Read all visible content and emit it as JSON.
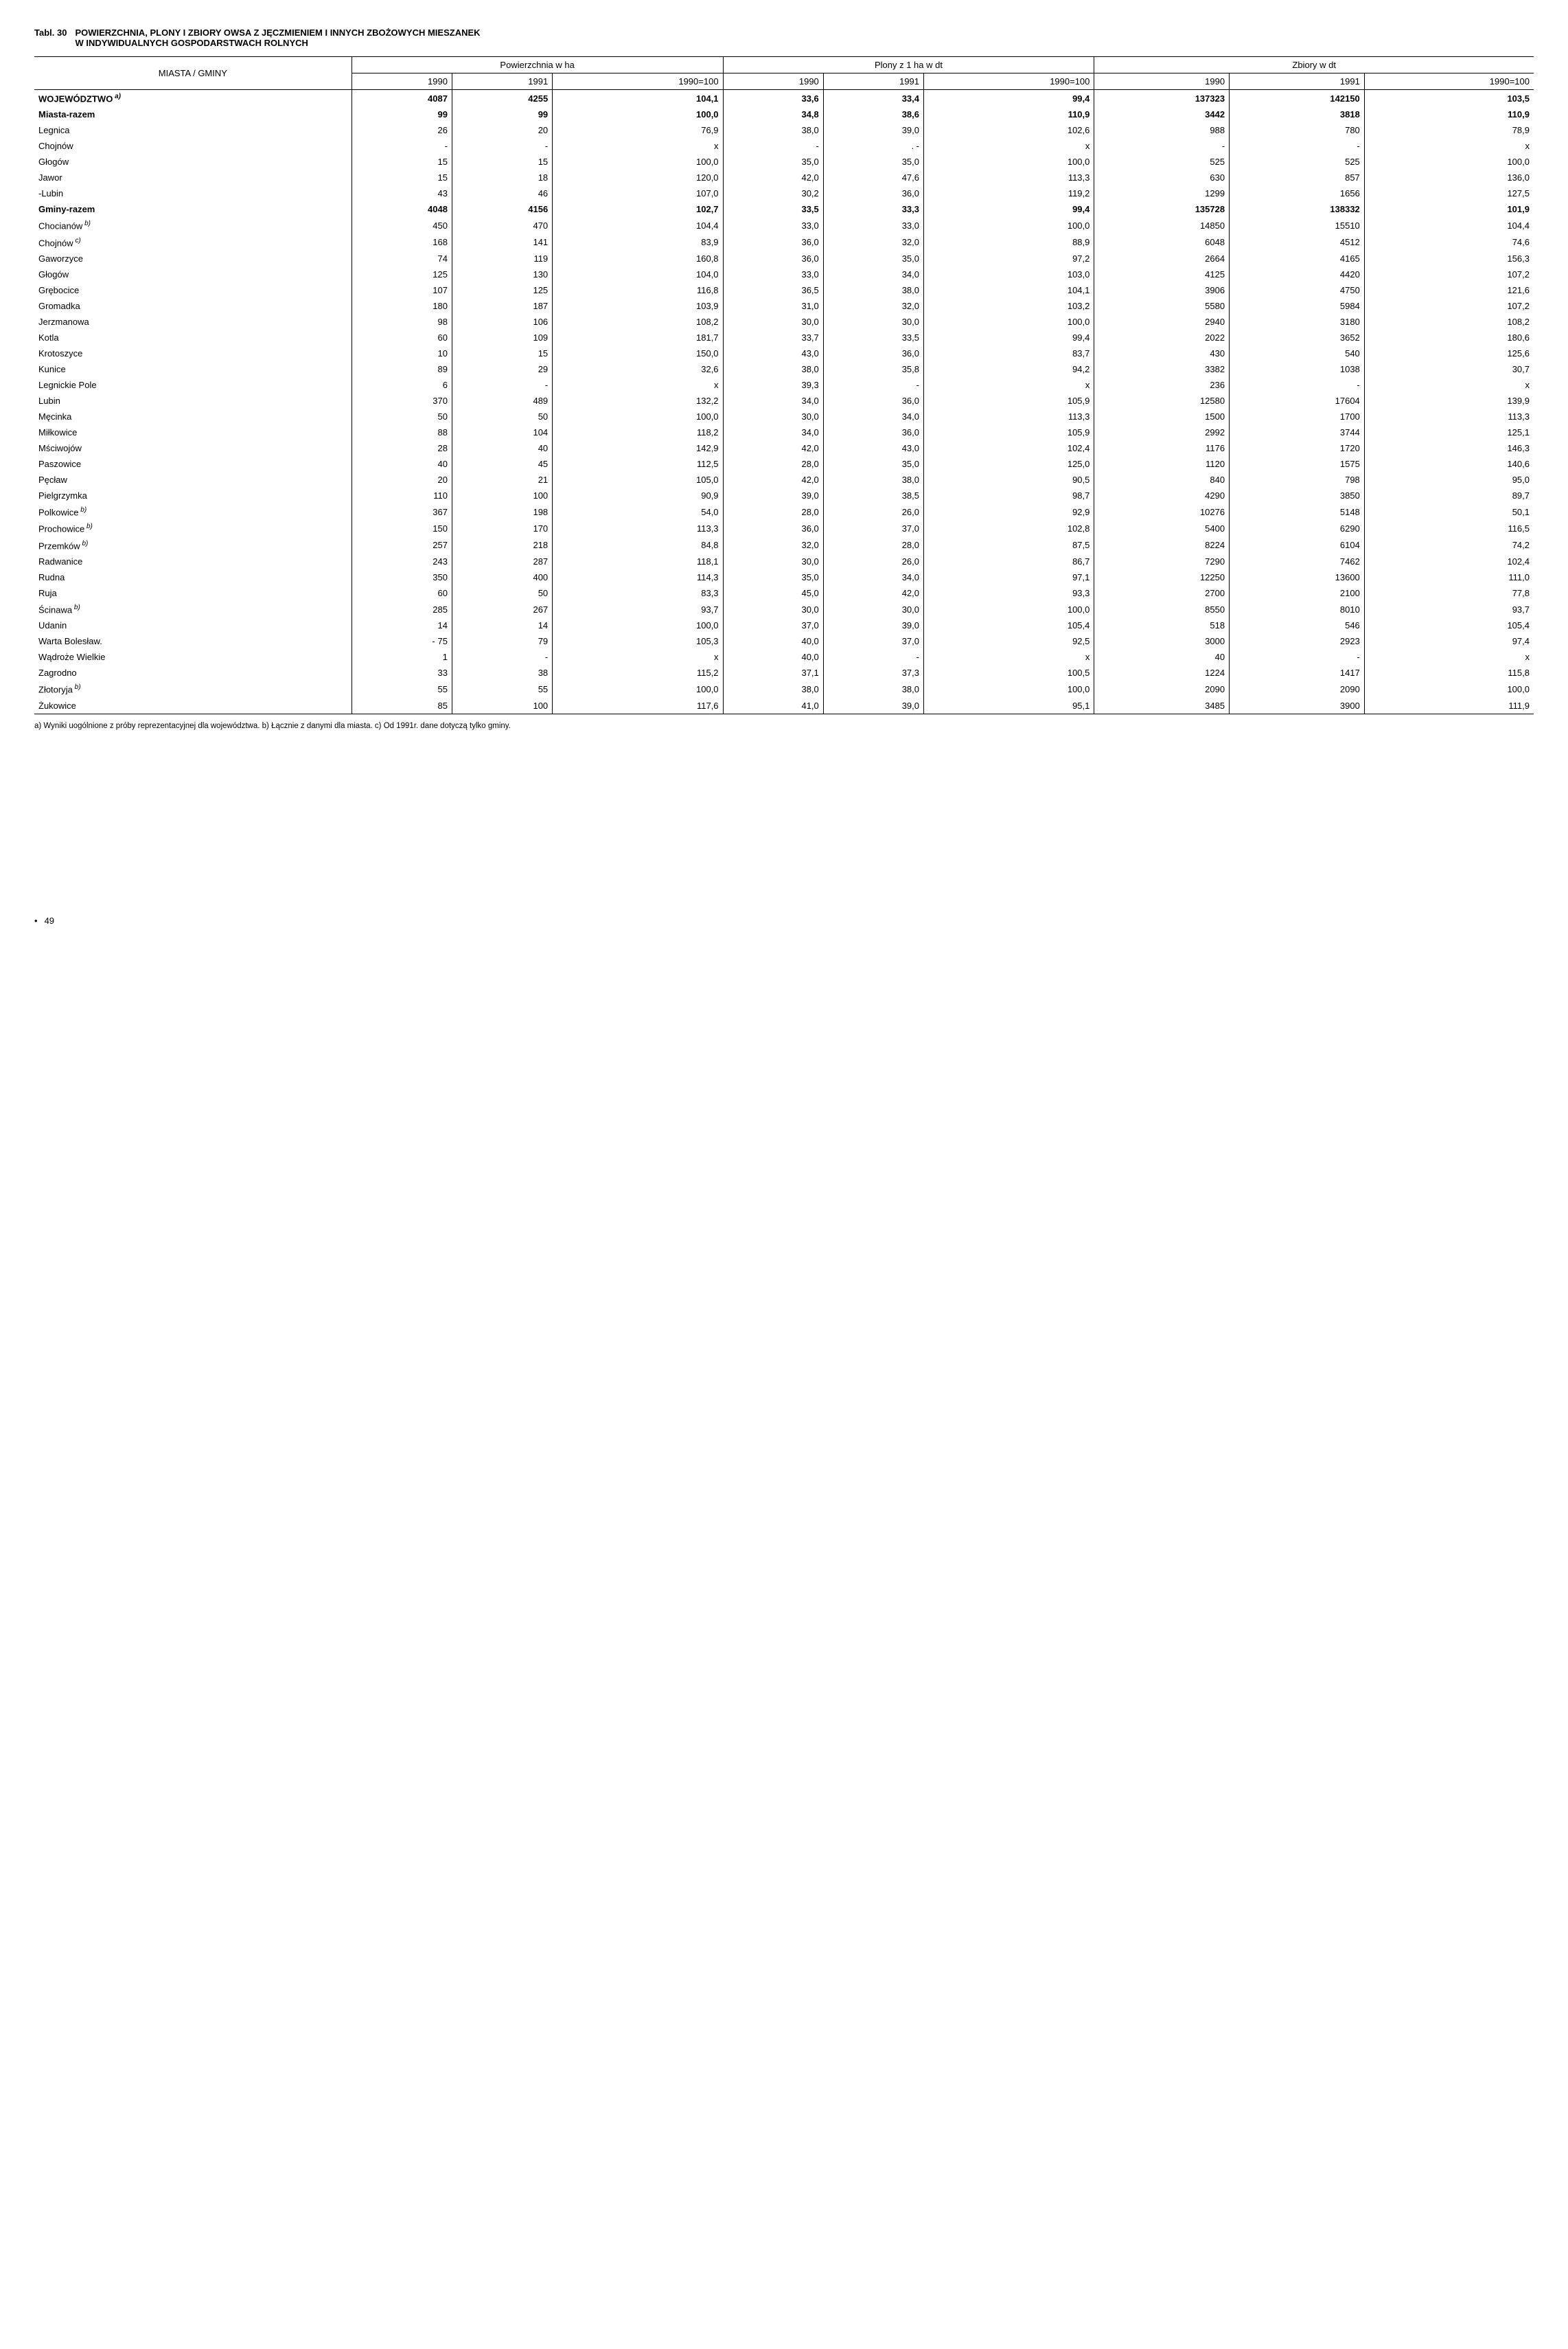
{
  "tabl_label": "Tabl. 30",
  "title_line1": "POWIERZCHNIA, PLONY I ZBIORY OWSA Z JĘCZMIENIEM I INNYCH ZBOŻOWYCH MIESZANEK",
  "title_line2": "W INDYWIDUALNYCH GOSPODARSTWACH ROLNYCH",
  "header": {
    "rowhead": "MIASTA / GMINY",
    "groups": [
      "Powierzchnia w ha",
      "Plony z 1 ha w dt",
      "Zbiory w dt"
    ],
    "subs": [
      "1990",
      "1991",
      "1990=100",
      "1990",
      "1991",
      "1990=100",
      "1990",
      "1991",
      "1990=100"
    ]
  },
  "rows": [
    {
      "name": "WOJEWÓDZTWO",
      "sup": "a)",
      "bold": true,
      "v": [
        "4087",
        "4255",
        "104,1",
        "33,6",
        "33,4",
        "99,4",
        "137323",
        "142150",
        "103,5"
      ]
    },
    {
      "name": "Miasta-razem",
      "bold": true,
      "v": [
        "99",
        "99",
        "100,0",
        "34,8",
        "38,6",
        "110,9",
        "3442",
        "3818",
        "110,9"
      ]
    },
    {
      "name": "Legnica",
      "v": [
        "26",
        "20",
        "76,9",
        "38,0",
        "39,0",
        "102,6",
        "988",
        "780",
        "78,9"
      ]
    },
    {
      "name": "Chojnów",
      "v": [
        "-",
        "-",
        "x",
        "-",
        ". -",
        "x",
        "-",
        "-",
        "x"
      ]
    },
    {
      "name": "Głogów",
      "v": [
        "15",
        "15",
        "100,0",
        "35,0",
        "35,0",
        "100,0",
        "525",
        "525",
        "100,0"
      ]
    },
    {
      "name": "Jawor",
      "v": [
        "15",
        "18",
        "120,0",
        "42,0",
        "47,6",
        "113,3",
        "630",
        "857",
        "136,0"
      ]
    },
    {
      "name": "-Lubin",
      "v": [
        "43",
        "46",
        "107,0",
        "30,2",
        "36,0",
        "119,2",
        "1299",
        "1656",
        "127,5"
      ]
    },
    {
      "name": "Gminy-razem",
      "bold": true,
      "v": [
        "4048",
        "4156",
        "102,7",
        "33,5",
        "33,3",
        "99,4",
        "135728",
        "138332",
        "101,9"
      ]
    },
    {
      "name": "Chocianów",
      "sup": "b)",
      "v": [
        "450",
        "470",
        "104,4",
        "33,0",
        "33,0",
        "100,0",
        "14850",
        "15510",
        "104,4"
      ]
    },
    {
      "name": "Chojnów",
      "sup": "c)",
      "v": [
        "168",
        "141",
        "83,9",
        "36,0",
        "32,0",
        "88,9",
        "6048",
        "4512",
        "74,6"
      ]
    },
    {
      "name": "Gaworzyce",
      "v": [
        "74",
        "119",
        "160,8",
        "36,0",
        "35,0",
        "97,2",
        "2664",
        "4165",
        "156,3"
      ]
    },
    {
      "name": "Głogów",
      "v": [
        "125",
        "130",
        "104,0",
        "33,0",
        "34,0",
        "103,0",
        "4125",
        "4420",
        "107,2"
      ]
    },
    {
      "name": "Grębocice",
      "v": [
        "107",
        "125",
        "116,8",
        "36,5",
        "38,0",
        "104,1",
        "3906",
        "4750",
        "121,6"
      ]
    },
    {
      "name": "Gromadka",
      "v": [
        "180",
        "187",
        "103,9",
        "31,0",
        "32,0",
        "103,2",
        "5580",
        "5984",
        "107,2"
      ]
    },
    {
      "name": "Jerzmanowa",
      "v": [
        "98",
        "106",
        "108,2",
        "30,0",
        "30,0",
        "100,0",
        "2940",
        "3180",
        "108,2"
      ]
    },
    {
      "name": "Kotla",
      "v": [
        "60",
        "109",
        "181,7",
        "33,7",
        "33,5",
        "99,4",
        "2022",
        "3652",
        "180,6"
      ]
    },
    {
      "name": "Krotoszyce",
      "v": [
        "10",
        "15",
        "150,0",
        "43,0",
        "36,0",
        "83,7",
        "430",
        "540",
        "125,6"
      ]
    },
    {
      "name": "Kunice",
      "v": [
        "89",
        "29",
        "32,6",
        "38,0",
        "35,8",
        "94,2",
        "3382",
        "1038",
        "30,7"
      ]
    },
    {
      "name": "Legnickie Pole",
      "v": [
        "6",
        "-",
        "x",
        "39,3",
        "-",
        "x",
        "236",
        "-",
        "x"
      ]
    },
    {
      "name": "Lubin",
      "v": [
        "370",
        "489",
        "132,2",
        "34,0",
        "36,0",
        "105,9",
        "12580",
        "17604",
        "139,9"
      ]
    },
    {
      "name": "Męcinka",
      "v": [
        "50",
        "50",
        "100,0",
        "30,0",
        "34,0",
        "113,3",
        "1500",
        "1700",
        "113,3"
      ]
    },
    {
      "name": "Miłkowice",
      "v": [
        "88",
        "104",
        "118,2",
        "34,0",
        "36,0",
        "105,9",
        "2992",
        "3744",
        "125,1"
      ]
    },
    {
      "name": "Mściwojów",
      "v": [
        "28",
        "40",
        "142,9",
        "42,0",
        "43,0",
        "102,4",
        "1176",
        "1720",
        "146,3"
      ]
    },
    {
      "name": "Paszowice",
      "v": [
        "40",
        "45",
        "112,5",
        "28,0",
        "35,0",
        "125,0",
        "1120",
        "1575",
        "140,6"
      ]
    },
    {
      "name": "Pęcław",
      "v": [
        "20",
        "21",
        "105,0",
        "42,0",
        "38,0",
        "90,5",
        "840",
        "798",
        "95,0"
      ]
    },
    {
      "name": "Pielgrzymka",
      "v": [
        "110",
        "100",
        "90,9",
        "39,0",
        "38,5",
        "98,7",
        "4290",
        "3850",
        "89,7"
      ]
    },
    {
      "name": "Polkowice",
      "sup": "b)",
      "v": [
        "367",
        "198",
        "54,0",
        "28,0",
        "26,0",
        "92,9",
        "10276",
        "5148",
        "50,1"
      ]
    },
    {
      "name": "Prochowice",
      "sup": "b)",
      "v": [
        "150",
        "170",
        "113,3",
        "36,0",
        "37,0",
        "102,8",
        "5400",
        "6290",
        "116,5"
      ]
    },
    {
      "name": "Przemków",
      "sup": "b)",
      "v": [
        "257",
        "218",
        "84,8",
        "32,0",
        "28,0",
        "87,5",
        "8224",
        "6104",
        "74,2"
      ]
    },
    {
      "name": "Radwanice",
      "v": [
        "243",
        "287",
        "118,1",
        "30,0",
        "26,0",
        "86,7",
        "7290",
        "7462",
        "102,4"
      ]
    },
    {
      "name": "Rudna",
      "v": [
        "350",
        "400",
        "114,3",
        "35,0",
        "34,0",
        "97,1",
        "12250",
        "13600",
        "111,0"
      ]
    },
    {
      "name": "Ruja",
      "v": [
        "60",
        "50",
        "83,3",
        "45,0",
        "42,0",
        "93,3",
        "2700",
        "2100",
        "77,8"
      ]
    },
    {
      "name": "Ścinawa",
      "sup": "b)",
      "v": [
        "285",
        "267",
        "93,7",
        "30,0",
        "30,0",
        "100,0",
        "8550",
        "8010",
        "93,7"
      ]
    },
    {
      "name": "Udanin",
      "v": [
        "14",
        "14",
        "100,0",
        "37,0",
        "39,0",
        "105,4",
        "518",
        "546",
        "105,4"
      ]
    },
    {
      "name": "Warta Bolesław.",
      "v": [
        "- 75",
        "79",
        "105,3",
        "40,0",
        "37,0",
        "92,5",
        "3000",
        "2923",
        "97,4"
      ]
    },
    {
      "name": "Wądroże Wielkie",
      "v": [
        "1",
        "-",
        "x",
        "40,0",
        "-",
        "x",
        "40",
        "-",
        "x"
      ]
    },
    {
      "name": "Zagrodno",
      "v": [
        "33",
        "38",
        "115,2",
        "37,1",
        "37,3",
        "100,5",
        "1224",
        "1417",
        "115,8"
      ]
    },
    {
      "name": "Złotoryja",
      "sup": "b)",
      "v": [
        "55",
        "55",
        "100,0",
        "38,0",
        "38,0",
        "100,0",
        "2090",
        "2090",
        "100,0"
      ]
    },
    {
      "name": "Żukowice",
      "v": [
        "85",
        "100",
        "117,6",
        "41,0",
        "39,0",
        "95,1",
        "3485",
        "3900",
        "111,9"
      ]
    }
  ],
  "footnote": "a) Wyniki uogólnione z próby reprezentacyjnej dla województwa. b) Łącznie z danymi dla miasta. c) Od 1991r. dane dotyczą tylko gminy.",
  "page_number": "49"
}
